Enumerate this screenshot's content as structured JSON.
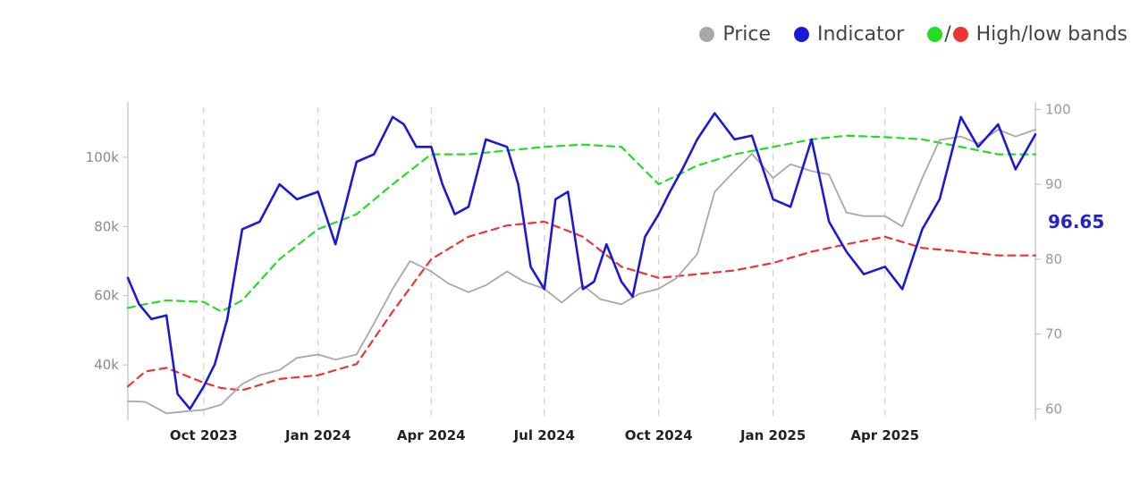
{
  "legend": {
    "price": {
      "label": "Price",
      "color": "#a8a8a8"
    },
    "indicator": {
      "label": "Indicator",
      "color": "#1a1ad6"
    },
    "bands": {
      "label": "High/low bands",
      "color_high": "#22dd22",
      "color_low": "#ee3333",
      "separator": "/"
    }
  },
  "chart_data": {
    "type": "line",
    "left_axis": {
      "label": "",
      "range": [
        24000,
        116000
      ],
      "ticks": [
        40000,
        60000,
        80000,
        100000
      ],
      "tick_labels": [
        "40k",
        "60k",
        "80k",
        "100k"
      ]
    },
    "right_axis": {
      "label": "",
      "range": [
        58.5,
        101
      ],
      "ticks": [
        60,
        70,
        80,
        90,
        100
      ],
      "tick_labels": [
        "60",
        "70",
        "80",
        "90",
        "100"
      ]
    },
    "x_axis": {
      "range": [
        "2023-08-01",
        "2025-07-31"
      ],
      "ticks": [
        "2023-10-01",
        "2024-01-01",
        "2024-04-01",
        "2024-07-01",
        "2024-10-01",
        "2025-01-01",
        "2025-04-01"
      ],
      "tick_labels": [
        "Oct 2023",
        "Jan 2024",
        "Apr 2024",
        "Jul 2024",
        "Oct 2024",
        "Jan 2025",
        "Apr 2025"
      ]
    },
    "grid": {
      "vertical": true,
      "horizontal": false
    },
    "legend_position": "top-right",
    "last_value_label": "96.65",
    "series": [
      {
        "name": "Price",
        "axis": "left",
        "x": [
          "2023-08-01",
          "2023-08-15",
          "2023-09-01",
          "2023-09-15",
          "2023-10-01",
          "2023-10-15",
          "2023-11-01",
          "2023-11-15",
          "2023-12-01",
          "2023-12-15",
          "2024-01-01",
          "2024-01-15",
          "2024-02-01",
          "2024-02-15",
          "2024-03-01",
          "2024-03-15",
          "2024-04-01",
          "2024-04-15",
          "2024-05-01",
          "2024-05-15",
          "2024-06-01",
          "2024-06-15",
          "2024-07-01",
          "2024-07-15",
          "2024-08-01",
          "2024-08-15",
          "2024-09-01",
          "2024-09-15",
          "2024-10-01",
          "2024-10-15",
          "2024-11-01",
          "2024-11-15",
          "2024-12-01",
          "2024-12-15",
          "2025-01-01",
          "2025-01-15",
          "2025-02-01",
          "2025-02-15",
          "2025-03-01",
          "2025-03-15",
          "2025-04-01",
          "2025-04-15",
          "2025-05-01",
          "2025-05-15",
          "2025-06-01",
          "2025-06-15",
          "2025-07-01",
          "2025-07-15",
          "2025-07-31"
        ],
        "values": [
          29500,
          29300,
          26000,
          26500,
          27000,
          28500,
          34500,
          37000,
          38500,
          42000,
          43000,
          41500,
          43000,
          52000,
          62000,
          70000,
          67000,
          63500,
          61000,
          63000,
          67000,
          64000,
          62000,
          58000,
          63000,
          59000,
          57500,
          60500,
          62000,
          65000,
          72000,
          90000,
          96000,
          101000,
          94000,
          98000,
          96000,
          95000,
          84000,
          83000,
          83000,
          80000,
          94000,
          105000,
          106000,
          104000,
          108000,
          106000,
          108000
        ]
      },
      {
        "name": "Indicator",
        "axis": "right",
        "x": [
          "2023-08-01",
          "2023-08-10",
          "2023-08-20",
          "2023-09-01",
          "2023-09-10",
          "2023-09-20",
          "2023-10-01",
          "2023-10-10",
          "2023-10-20",
          "2023-11-01",
          "2023-11-15",
          "2023-12-01",
          "2023-12-15",
          "2024-01-01",
          "2024-01-15",
          "2024-02-01",
          "2024-02-15",
          "2024-03-01",
          "2024-03-10",
          "2024-03-20",
          "2024-04-01",
          "2024-04-10",
          "2024-04-20",
          "2024-05-01",
          "2024-05-15",
          "2024-06-01",
          "2024-06-10",
          "2024-06-20",
          "2024-07-01",
          "2024-07-10",
          "2024-07-20",
          "2024-08-01",
          "2024-08-10",
          "2024-08-20",
          "2024-09-01",
          "2024-09-10",
          "2024-09-20",
          "2024-10-01",
          "2024-10-10",
          "2024-10-20",
          "2024-11-01",
          "2024-11-15",
          "2024-12-01",
          "2024-12-15",
          "2025-01-01",
          "2025-01-15",
          "2025-02-01",
          "2025-02-15",
          "2025-03-01",
          "2025-03-15",
          "2025-04-01",
          "2025-04-15",
          "2025-05-01",
          "2025-05-15",
          "2025-06-01",
          "2025-06-15",
          "2025-07-01",
          "2025-07-15",
          "2025-07-31"
        ],
        "values": [
          77.5,
          74,
          72,
          72.5,
          62,
          60,
          63,
          66,
          72,
          84,
          85,
          90,
          88,
          89,
          82,
          93,
          94,
          99,
          98,
          95,
          95,
          90,
          86,
          87,
          96,
          95,
          90,
          79,
          76,
          88,
          89,
          76,
          77,
          82,
          77,
          75,
          83,
          86,
          89,
          92,
          96,
          99.5,
          96,
          96.5,
          88,
          87,
          96,
          85,
          81,
          78,
          79,
          76,
          84,
          88,
          99,
          95,
          98,
          92,
          96.65
        ]
      },
      {
        "name": "High band",
        "axis": "right",
        "x": [
          "2023-08-01",
          "2023-08-15",
          "2023-09-01",
          "2023-10-01",
          "2023-10-15",
          "2023-11-01",
          "2023-12-01",
          "2024-01-01",
          "2024-02-01",
          "2024-03-01",
          "2024-04-01",
          "2024-05-01",
          "2024-06-01",
          "2024-07-01",
          "2024-08-01",
          "2024-09-01",
          "2024-10-01",
          "2024-11-01",
          "2024-12-01",
          "2025-01-01",
          "2025-02-01",
          "2025-03-01",
          "2025-04-01",
          "2025-05-01",
          "2025-06-01",
          "2025-07-01",
          "2025-07-31"
        ],
        "values": [
          73.5,
          74,
          74.5,
          74.3,
          73,
          74.5,
          80,
          84,
          86,
          90,
          94,
          94,
          94.5,
          95,
          95.3,
          95,
          90,
          92.5,
          94,
          95,
          96,
          96.5,
          96.3,
          96,
          95,
          94,
          94
        ]
      },
      {
        "name": "Low band",
        "axis": "right",
        "x": [
          "2023-08-01",
          "2023-08-15",
          "2023-09-01",
          "2023-10-01",
          "2023-10-15",
          "2023-11-01",
          "2023-12-01",
          "2024-01-01",
          "2024-02-01",
          "2024-03-01",
          "2024-04-01",
          "2024-05-01",
          "2024-06-01",
          "2024-07-01",
          "2024-08-01",
          "2024-09-01",
          "2024-10-01",
          "2024-11-01",
          "2024-12-01",
          "2025-01-01",
          "2025-02-01",
          "2025-03-01",
          "2025-04-01",
          "2025-05-01",
          "2025-06-01",
          "2025-07-01",
          "2025-07-31"
        ],
        "values": [
          63,
          65,
          65.5,
          63.5,
          62.8,
          62.5,
          64,
          64.5,
          66,
          73,
          80,
          83,
          84.5,
          85,
          83,
          79,
          77.5,
          78,
          78.5,
          79.5,
          81,
          82,
          83,
          81.5,
          81,
          80.5,
          80.5
        ]
      }
    ]
  }
}
